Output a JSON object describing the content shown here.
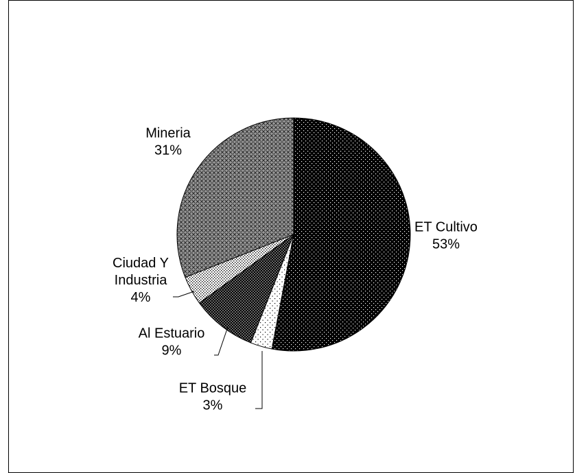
{
  "chart_data": {
    "type": "pie",
    "title": "",
    "slices": [
      {
        "label": "ET Cultivo",
        "pct_label": "53%",
        "value": 53
      },
      {
        "label": "ET Bosque",
        "pct_label": "3%",
        "value": 3
      },
      {
        "label": "Al Estuario",
        "pct_label": "9%",
        "value": 9
      },
      {
        "label": "Ciudad Y Industria",
        "label_lines": [
          "Ciudad Y",
          "Industria"
        ],
        "pct_label": "4%",
        "value": 4
      },
      {
        "label": "Mineria",
        "pct_label": "31%",
        "value": 31
      }
    ],
    "patterns": [
      "dense-dots-dark",
      "sparse-dots-light",
      "checker-dark",
      "dots-light",
      "crosshatch-gray"
    ],
    "start_angle_deg": 0,
    "direction": "clockwise",
    "legend": "none",
    "colors": {
      "outline": "#000000",
      "background": "#ffffff"
    }
  }
}
